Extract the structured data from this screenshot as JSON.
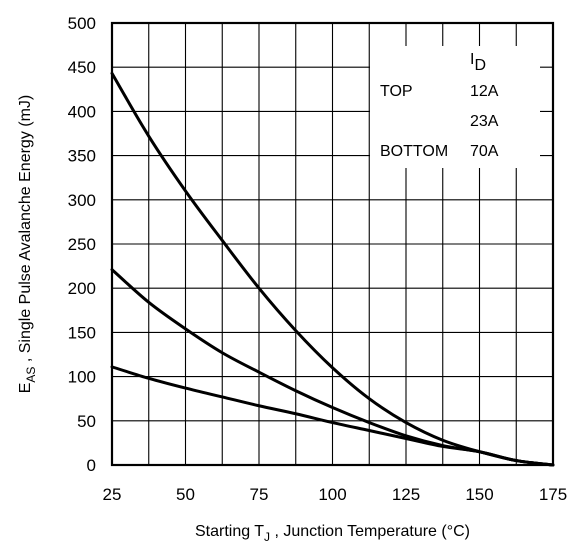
{
  "chart_data": {
    "type": "line",
    "xlabel": {
      "main": "Starting T",
      "sub": "J",
      "rest": " , Junction Temperature (°C)"
    },
    "ylabel": {
      "main": "E",
      "sub": "AS",
      "rest": " , Single Pulse Avalanche Energy (mJ)"
    },
    "xlim": [
      25,
      175
    ],
    "ylim": [
      0,
      500
    ],
    "x_ticks": [
      "25",
      "50",
      "75",
      "100",
      "125",
      "150",
      "175"
    ],
    "y_ticks": [
      "0",
      "50",
      "100",
      "150",
      "200",
      "250",
      "300",
      "350",
      "400",
      "450",
      "500"
    ],
    "grid": true,
    "legend": {
      "placement": "top-right",
      "header": {
        "main": "I",
        "sub": "D"
      },
      "rows": [
        {
          "position": "TOP",
          "current": "12A"
        },
        {
          "position": "",
          "current": "23A"
        },
        {
          "position": "BOTTOM",
          "current": "70A"
        }
      ]
    },
    "series": [
      {
        "label": "12A",
        "x": [
          25,
          37.5,
          50,
          62.5,
          75,
          87.5,
          100,
          112.5,
          125,
          137.5,
          150,
          162.5,
          175
        ],
        "values": [
          443,
          372,
          310,
          254,
          200,
          152,
          110,
          75,
          48,
          28,
          15,
          5,
          0
        ]
      },
      {
        "label": "23A",
        "x": [
          25,
          37.5,
          50,
          62.5,
          75,
          87.5,
          100,
          112.5,
          125,
          137.5,
          150,
          162.5,
          175
        ],
        "values": [
          221,
          184,
          154,
          127,
          105,
          84,
          65,
          48,
          33,
          22,
          15,
          5,
          0
        ]
      },
      {
        "label": "70A",
        "x": [
          25,
          37.5,
          50,
          62.5,
          75,
          87.5,
          100,
          112.5,
          125,
          137.5,
          150,
          162.5,
          175
        ],
        "values": [
          111,
          98,
          87,
          77,
          67,
          58,
          48,
          39,
          30,
          21,
          15,
          5,
          0
        ]
      }
    ]
  }
}
